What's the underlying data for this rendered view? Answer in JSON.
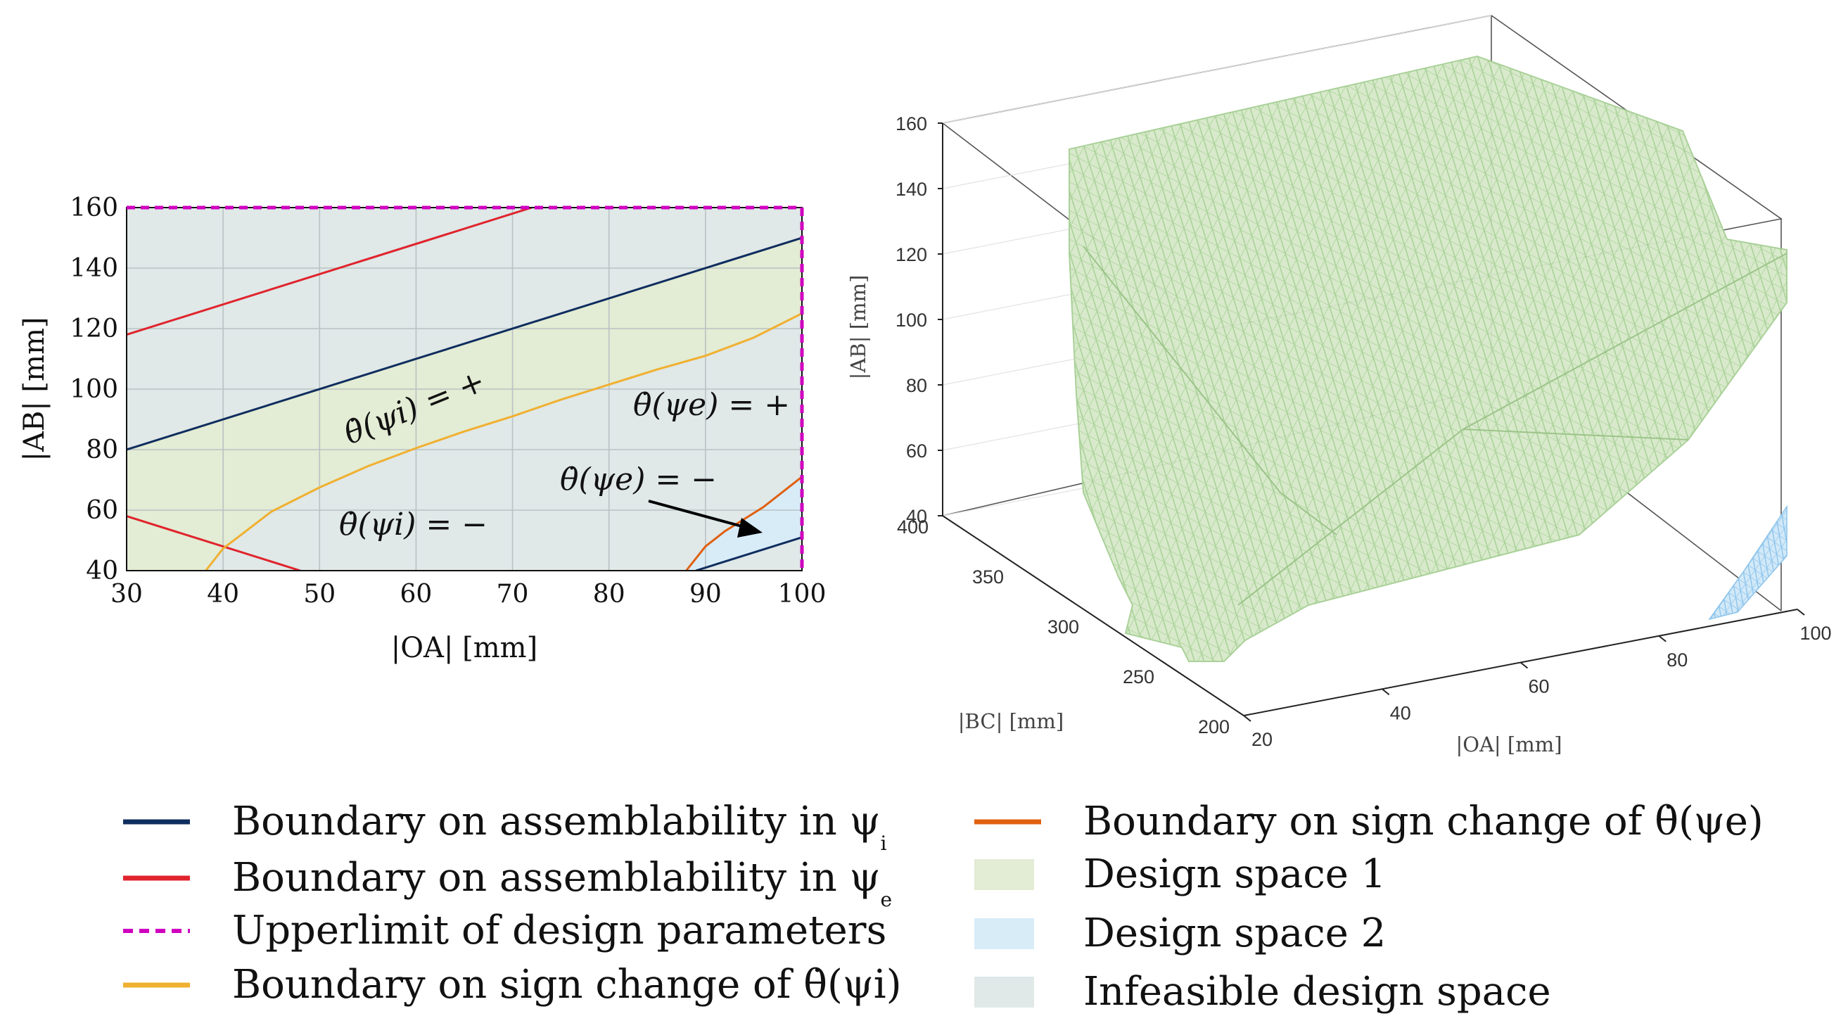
{
  "chart_data": [
    {
      "type": "area",
      "title": "",
      "xlabel": "|OA| [mm]",
      "ylabel": "|AB| [mm]",
      "xlim": [
        30,
        100
      ],
      "ylim": [
        40,
        160
      ],
      "xticks": [
        30,
        40,
        50,
        60,
        70,
        80,
        90,
        100
      ],
      "yticks": [
        40,
        60,
        80,
        100,
        120,
        140,
        160
      ],
      "grid": true,
      "series": [
        {
          "name": "Boundary on assemblability in ψi",
          "color": "#0f2d5e",
          "x": [
            30,
            100
          ],
          "y": [
            80,
            150
          ]
        },
        {
          "name": "Boundary on assemblability in ψi",
          "color": "#0f2d5e",
          "x": [
            89,
            100
          ],
          "y": [
            40,
            51
          ]
        },
        {
          "name": "Boundary on assemblability in ψe",
          "color": "#e0242c",
          "x": [
            30,
            72
          ],
          "y": [
            118,
            160
          ]
        },
        {
          "name": "Boundary on assemblability in ψe",
          "color": "#e0242c",
          "x": [
            30,
            48
          ],
          "y": [
            58,
            40
          ]
        },
        {
          "name": "Boundary on sign change of θ̇(ψi)",
          "color": "#f0b030",
          "x": [
            38.2,
            40,
            45,
            50,
            55,
            60,
            65,
            70,
            75,
            80,
            85,
            90,
            95,
            100
          ],
          "y": [
            40,
            47.3,
            59.5,
            67.5,
            74.5,
            80.5,
            86,
            91,
            96.5,
            101.5,
            106.5,
            111,
            117,
            125
          ]
        },
        {
          "name": "Boundary on sign change of θ̇(ψe)",
          "color": "#e06010",
          "x": [
            88,
            90,
            92,
            94,
            96,
            98,
            100
          ],
          "y": [
            40,
            48,
            53,
            57,
            61,
            66,
            71
          ]
        }
      ],
      "regions": [
        {
          "name": "Design space 1",
          "color": "#e3ecd4"
        },
        {
          "name": "Design space 2",
          "color": "#d8ecf8"
        },
        {
          "name": "Infeasible design space",
          "color": "#e0e8e8"
        }
      ],
      "upper_limit": {
        "name": "Upperlimit of design parameters",
        "color": "#d000c0",
        "x": 100,
        "y": 160
      },
      "annotations": [
        {
          "text": "θ̇(ψi) = +"
        },
        {
          "text": "θ̇(ψi) = −"
        },
        {
          "text": "θ̇(ψe) = +"
        },
        {
          "text": "θ̇(ψe) = −"
        }
      ]
    },
    {
      "type": "surface-3d",
      "title": "",
      "xlabel": "|OA| [mm]",
      "ylabel": "|BC| [mm]",
      "zlabel": "|AB| [mm]",
      "xlim": [
        20,
        100
      ],
      "ylim": [
        200,
        400
      ],
      "zlim": [
        40,
        160
      ],
      "xticks": [
        20,
        40,
        60,
        80,
        100
      ],
      "yticks": [
        200,
        250,
        300,
        350,
        400
      ],
      "zticks": [
        40,
        60,
        80,
        100,
        120,
        140,
        160
      ],
      "series": [
        {
          "name": "Design space 1",
          "color": "#9ccc8a"
        },
        {
          "name": "Design space 2",
          "color": "#8cc4ec"
        }
      ]
    }
  ],
  "legend": {
    "items": [
      {
        "label": "Boundary on assemblability in ψ",
        "sub": "i",
        "color": "#0f2d5e",
        "kind": "line"
      },
      {
        "label": "Boundary on assemblability in ψ",
        "sub": "e",
        "color": "#e0242c",
        "kind": "line"
      },
      {
        "label": "Upperlimit of design parameters",
        "sub": "",
        "color": "#d000c0",
        "kind": "dash"
      },
      {
        "label": "Boundary on sign change of θ̇(ψi)",
        "sub": "",
        "color": "#f0b030",
        "kind": "line"
      },
      {
        "label": "Boundary on sign change of θ̇(ψe)",
        "sub": "",
        "color": "#e06010",
        "kind": "line"
      },
      {
        "label": "Design space 1",
        "sub": "",
        "color": "#e3ecd4",
        "kind": "patch"
      },
      {
        "label": "Design space 2",
        "sub": "",
        "color": "#d8ecf8",
        "kind": "patch"
      },
      {
        "label": "Infeasible design space",
        "sub": "",
        "color": "#e0e8e8",
        "kind": "patch"
      }
    ]
  }
}
